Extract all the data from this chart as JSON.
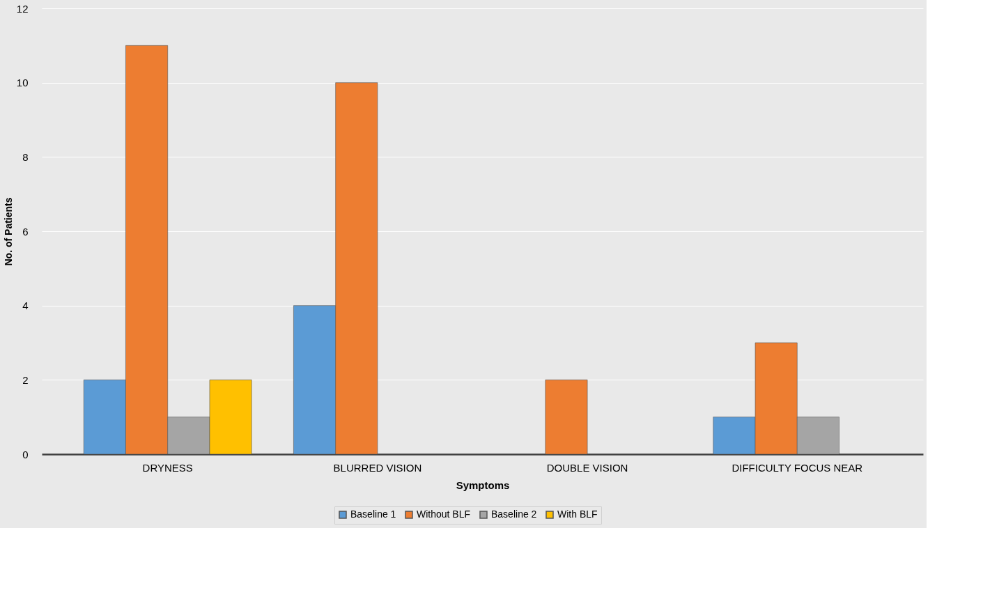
{
  "chart_data": {
    "type": "bar",
    "xlabel": "Symptoms",
    "ylabel": "No. of Patients",
    "categories": [
      "DRYNESS",
      "BLURRED VISION",
      "DOUBLE VISION",
      "DIFFICULTY FOCUS NEAR"
    ],
    "series": [
      {
        "name": "Baseline 1",
        "color": "#5b9bd5",
        "values": [
          2,
          4,
          null,
          1
        ]
      },
      {
        "name": "Without BLF",
        "color": "#ed7d31",
        "values": [
          11,
          10,
          2,
          3
        ]
      },
      {
        "name": "Baseline 2",
        "color": "#a5a5a5",
        "values": [
          1,
          null,
          null,
          1
        ]
      },
      {
        "name": "With BLF",
        "color": "#ffc000",
        "values": [
          2,
          null,
          null,
          null
        ]
      }
    ],
    "ylim": [
      0,
      12
    ],
    "yticks": [
      0,
      2,
      4,
      6,
      8,
      10,
      12
    ],
    "grid": "y",
    "legend": "bottom"
  }
}
